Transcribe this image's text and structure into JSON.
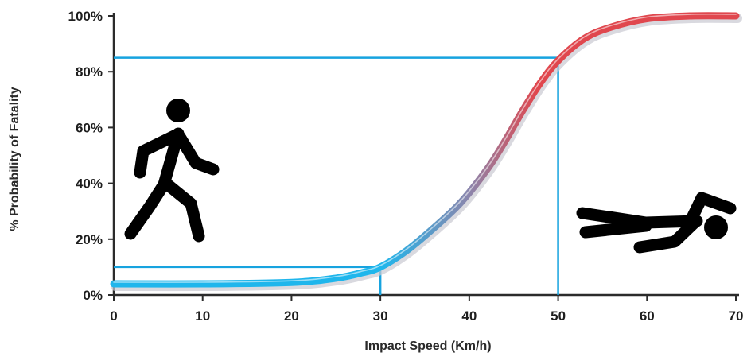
{
  "chart_data": {
    "type": "line",
    "xlabel": "Impact Speed (Km/h)",
    "ylabel": "% Probability of Fatality",
    "xlim": [
      0,
      70
    ],
    "ylim": [
      0,
      100
    ],
    "x_ticks": [
      "0",
      "10",
      "20",
      "30",
      "40",
      "50",
      "60",
      "70"
    ],
    "y_ticks": [
      "0%",
      "20%",
      "40%",
      "60%",
      "80%",
      "100%"
    ],
    "grid": false,
    "legend": "none",
    "series": [
      {
        "x": [
          0,
          10,
          20,
          25,
          28,
          30,
          33,
          36,
          39,
          42,
          44,
          46,
          48,
          50,
          53,
          56,
          60,
          65,
          70
        ],
        "y": [
          4,
          4,
          4.5,
          6,
          8,
          10,
          16,
          24,
          33,
          45,
          55,
          66,
          76,
          84,
          92,
          96,
          99,
          100,
          100
        ],
        "gradient": [
          "#1fb6ec",
          "#8a86ad",
          "#e0474e"
        ]
      }
    ],
    "reference_lines": [
      {
        "x": 30,
        "y": 10
      },
      {
        "x": 50,
        "y": 85
      }
    ],
    "reference_color": "#17a3df",
    "icons": [
      "walking-pedestrian-icon",
      "fallen-pedestrian-icon"
    ]
  }
}
